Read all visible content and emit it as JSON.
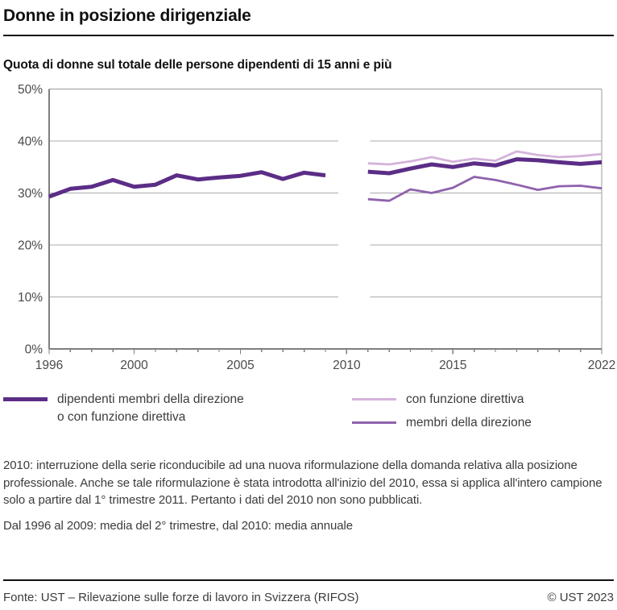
{
  "page": {
    "title": "Donne in posizione dirigenziale",
    "subtitle": "Quota di donne sul totale delle persone dipendenti di 15 anni e più",
    "footnote1": "2010: interruzione della serie riconducibile ad una nuova riformulazione della domanda relativa alla posizione professionale. Anche se tale riformulazione è stata introdotta all'inizio del 2010, essa si applica all'intero campione solo a partire dal 1° trimestre 2011. Pertanto i dati del 2010 non sono pubblicati.",
    "footnote2": "Dal 1996 al 2009: media del 2° trimestre, dal 2010: media annuale",
    "source": "Fonte: UST – Rilevazione sulle forze di lavoro in Svizzera (RIFOS)",
    "copyright": "© UST 2023"
  },
  "legend": {
    "items": [
      {
        "label_line1": "dipendenti membri della direzione",
        "label_line2": "o con funzione direttiva",
        "color": "#5b2d86"
      },
      {
        "label_line1": "con funzione direttiva",
        "color": "#d4b3da"
      },
      {
        "label_line1": "membri della direzione",
        "color": "#8f62ad"
      }
    ]
  },
  "colors": {
    "series_total": "#5b2d86",
    "series_direttiva": "#d4b3da",
    "series_direzione": "#8f62ad",
    "gridline": "#ababab",
    "frame": "#9a9a9a",
    "axis": "#7f7f7f",
    "tick_label": "#4a4a4a",
    "rule": "#111111"
  },
  "chart_data": {
    "type": "line",
    "title": "Quota di donne sul totale delle persone dipendenti di 15 anni e più",
    "xlabel": "",
    "ylabel": "",
    "ylim": [
      0,
      50
    ],
    "x_range": [
      1996,
      2022
    ],
    "grid": true,
    "legend_position": "bottom",
    "ytick_values": [
      0,
      10,
      20,
      30,
      40,
      50
    ],
    "ytick_labels": [
      "0%",
      "10%",
      "20%",
      "30%",
      "40%",
      "50%"
    ],
    "xtick_labeled_years": [
      1996,
      2000,
      2005,
      2010,
      2015,
      2022
    ],
    "series_break_note": "2010 data not published; gridlines interrupted around 2010",
    "series": [
      {
        "name": "dipendenti membri della direzione o con funzione direttiva",
        "color": "#5b2d86",
        "stroke_width": 5,
        "segments": [
          {
            "x": [
              1996,
              1997,
              1998,
              1999,
              2000,
              2001,
              2002,
              2003,
              2004,
              2005,
              2006,
              2007,
              2008,
              2009
            ],
            "y": [
              29.3,
              30.8,
              31.2,
              32.5,
              31.2,
              31.6,
              33.4,
              32.6,
              33.0,
              33.3,
              34.0,
              32.7,
              33.9,
              33.4
            ]
          },
          {
            "x": [
              2011,
              2012,
              2013,
              2014,
              2015,
              2016,
              2017,
              2018,
              2019,
              2020,
              2021,
              2022
            ],
            "y": [
              34.1,
              33.8,
              34.7,
              35.5,
              35.0,
              35.7,
              35.3,
              36.5,
              36.3,
              35.9,
              35.6,
              35.9
            ]
          }
        ]
      },
      {
        "name": "con funzione direttiva",
        "color": "#d4b3da",
        "stroke_width": 2.8,
        "segments": [
          {
            "x": [
              2011,
              2012,
              2013,
              2014,
              2015,
              2016,
              2017,
              2018,
              2019,
              2020,
              2021,
              2022
            ],
            "y": [
              35.7,
              35.5,
              36.1,
              36.9,
              36.0,
              36.6,
              36.2,
              38.0,
              37.3,
              36.9,
              37.1,
              37.5
            ]
          }
        ]
      },
      {
        "name": "membri della direzione",
        "color": "#8f62ad",
        "stroke_width": 2.8,
        "segments": [
          {
            "x": [
              2011,
              2012,
              2013,
              2014,
              2015,
              2016,
              2017,
              2018,
              2019,
              2020,
              2021,
              2022
            ],
            "y": [
              28.8,
              28.5,
              30.7,
              30.0,
              31.0,
              33.1,
              32.5,
              31.6,
              30.6,
              31.3,
              31.4,
              30.9
            ]
          }
        ]
      }
    ]
  }
}
